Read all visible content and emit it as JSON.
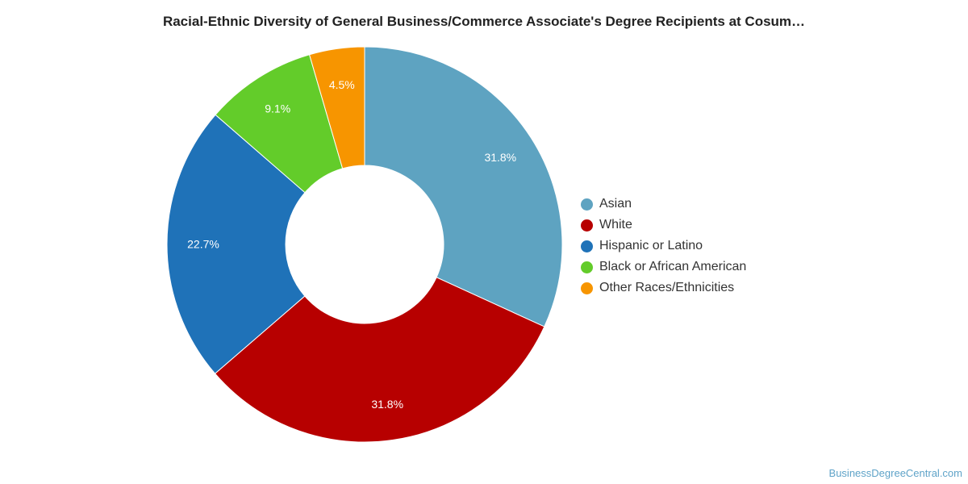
{
  "chart_data": {
    "type": "pie",
    "title": "Racial-Ethnic Diversity of General Business/Commerce Associate's Degree Recipients at Cosum…",
    "donut": true,
    "legend_position": "right",
    "slices": [
      {
        "label": "Asian",
        "value": 31.8,
        "display": "31.8%",
        "color": "#5ea3c1"
      },
      {
        "label": "White",
        "value": 31.8,
        "display": "31.8%",
        "color": "#b70000"
      },
      {
        "label": "Hispanic or Latino",
        "value": 22.7,
        "display": "22.7%",
        "color": "#1f72b8"
      },
      {
        "label": "Black or African American",
        "value": 9.1,
        "display": "9.1%",
        "color": "#63cc2a"
      },
      {
        "label": "Other Races/Ethnicities",
        "value": 4.5,
        "display": "4.5%",
        "color": "#f79500"
      }
    ]
  },
  "footer": {
    "source": "BusinessDegreeCentral.com"
  }
}
